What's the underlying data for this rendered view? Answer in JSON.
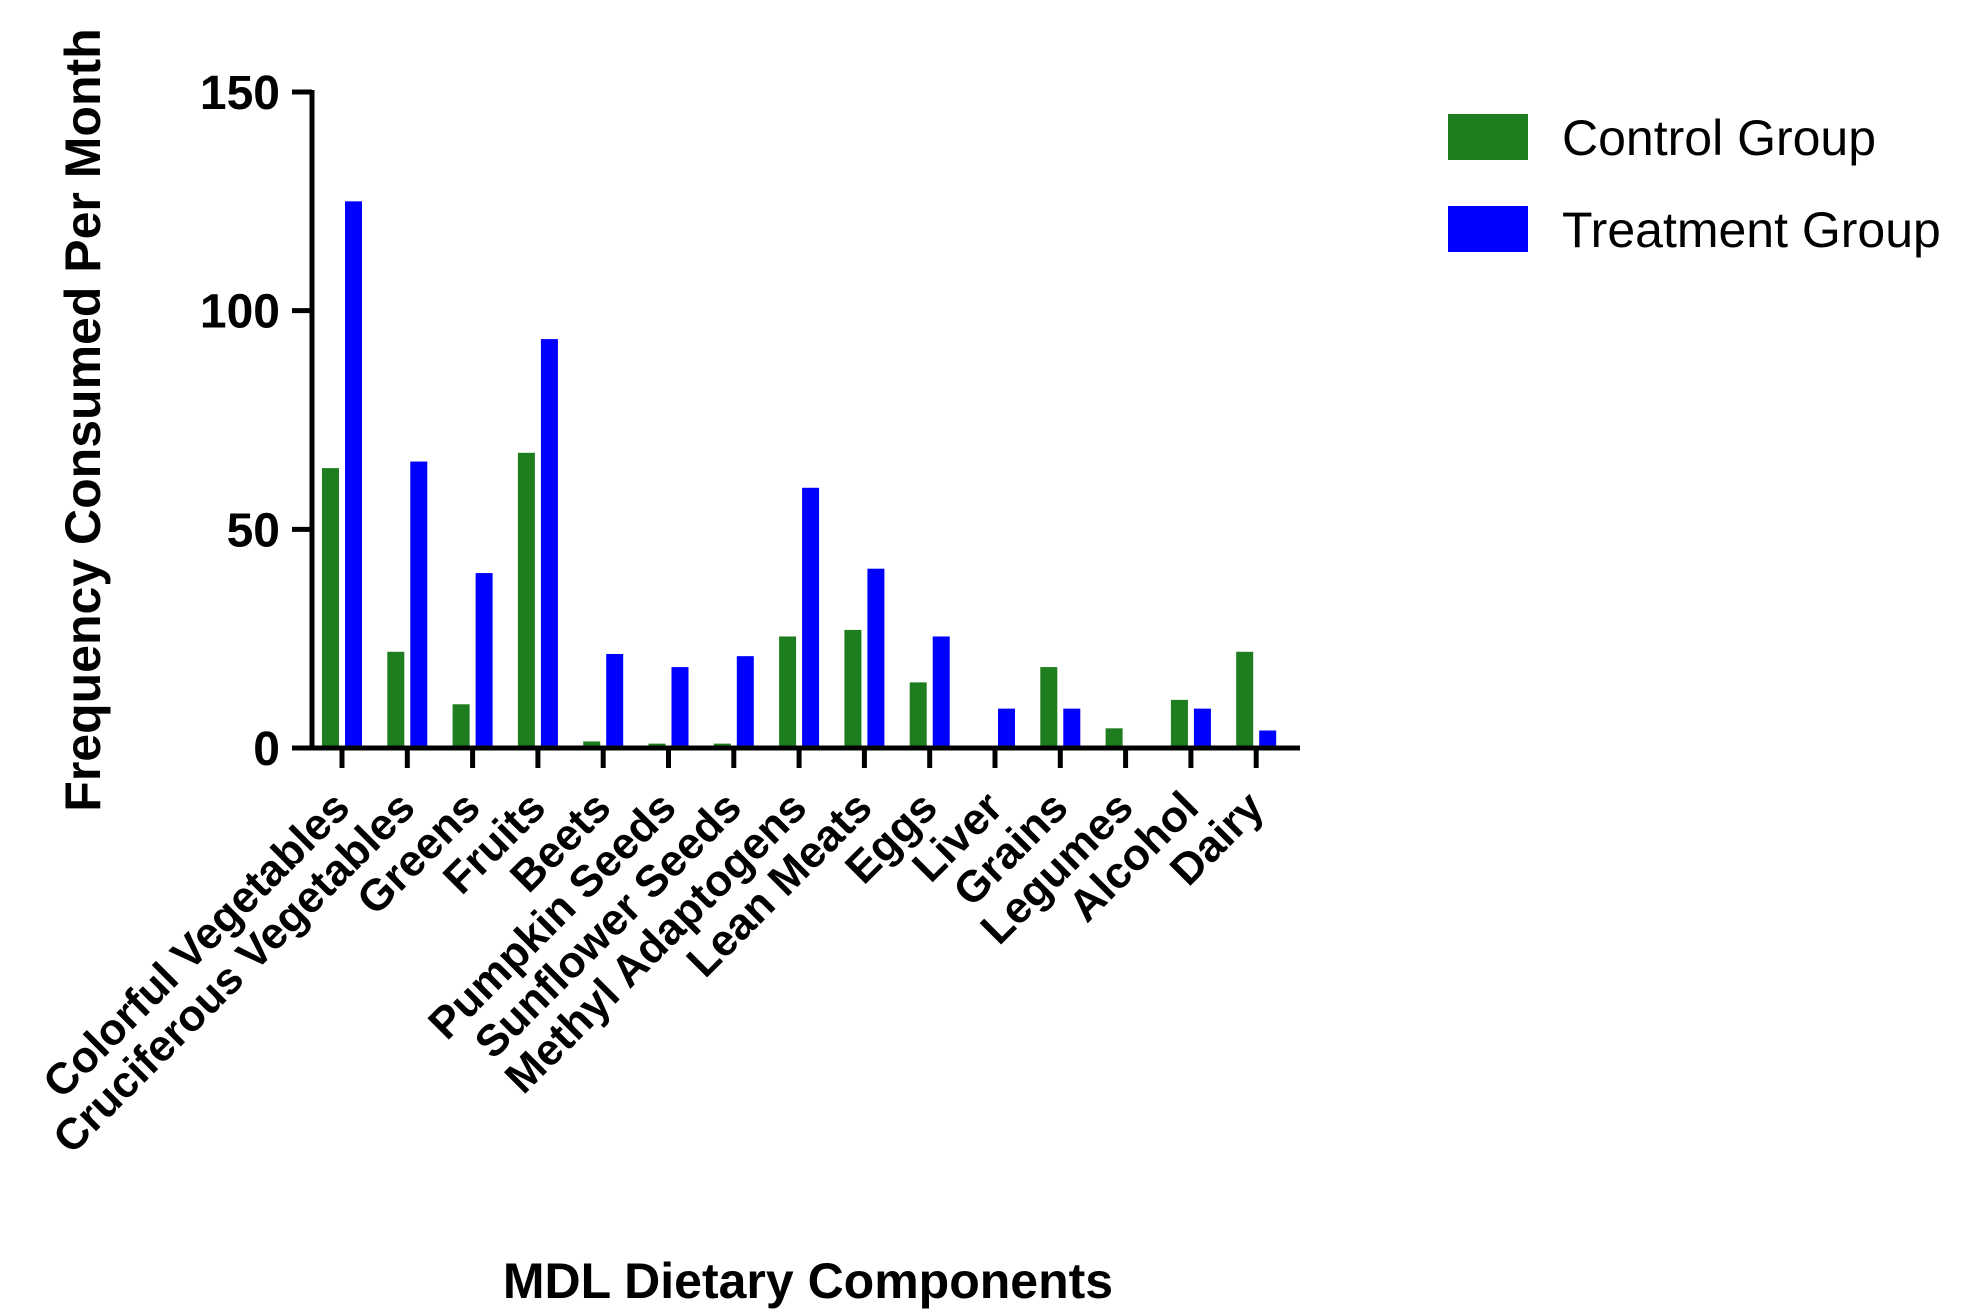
{
  "chart_data": {
    "type": "bar",
    "xlabel": "MDL Dietary Components",
    "ylabel": "Frequency Consumed Per Month",
    "ylim": [
      0,
      150
    ],
    "yticks": [
      0,
      50,
      100,
      150
    ],
    "legend_position": "top-right",
    "categories": [
      "Colorful Vegetables",
      "Cruciferous Vegetables",
      "Greens",
      "Fruits",
      "Beets",
      "Pumpkin Seeds",
      "Sunflower Seeds",
      "Methyl Adaptogens",
      "Lean Meats",
      "Eggs",
      "Liver",
      "Grains",
      "Legumes",
      "Alcohol",
      "Dairy"
    ],
    "series": [
      {
        "name": "Control Group",
        "color": "#1e7d1e",
        "values": [
          64,
          22,
          10,
          67.5,
          1.5,
          1,
          1,
          25.5,
          27,
          15,
          0,
          18.5,
          4.5,
          11,
          22
        ]
      },
      {
        "name": "Treatment Group",
        "color": "#0000ff",
        "values": [
          125,
          65.5,
          40,
          93.5,
          21.5,
          18.5,
          21,
          59.5,
          41,
          25.5,
          9,
          9,
          0,
          9,
          4
        ]
      }
    ]
  }
}
